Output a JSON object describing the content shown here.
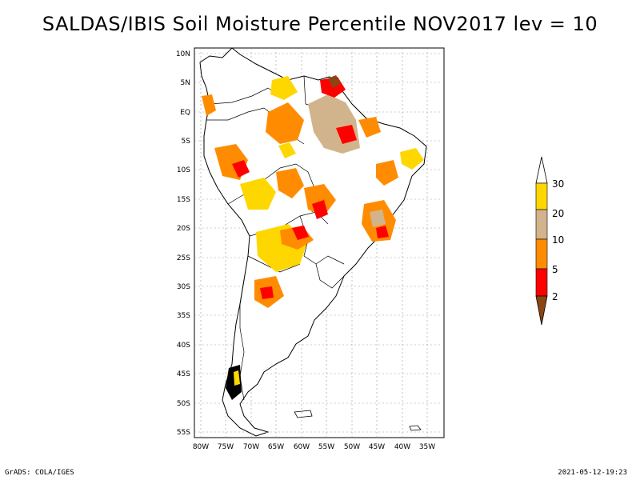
{
  "title": "SALDAS/IBIS Soil Moisture Percentile NOV2017 lev = 10",
  "footer": {
    "left": "GrADS: COLA/IGES",
    "right": "2021-05-12-19:23"
  },
  "map": {
    "region": "South America",
    "lon_range": [
      -81,
      -32
    ],
    "lat_range": [
      -56,
      11
    ],
    "lat_ticks": [
      "10N",
      "5N",
      "EQ",
      "5S",
      "10S",
      "15S",
      "20S",
      "25S",
      "30S",
      "35S",
      "40S",
      "45S",
      "50S",
      "55S"
    ],
    "lon_ticks": [
      "80W",
      "75W",
      "70W",
      "65W",
      "60W",
      "55W",
      "50W",
      "45W",
      "40W",
      "35W"
    ]
  },
  "legend": {
    "levels": [
      {
        "label": "30",
        "color": "#ffd700"
      },
      {
        "label": "20",
        "color": "#d2b48c"
      },
      {
        "label": "10",
        "color": "#ff8c00"
      },
      {
        "label": "5",
        "color": "#ff0000"
      },
      {
        "label": "2",
        "color": "#8b4513"
      }
    ],
    "top_arrow_color": "#ffffff",
    "bottom_arrow_color": "#8b4513"
  }
}
